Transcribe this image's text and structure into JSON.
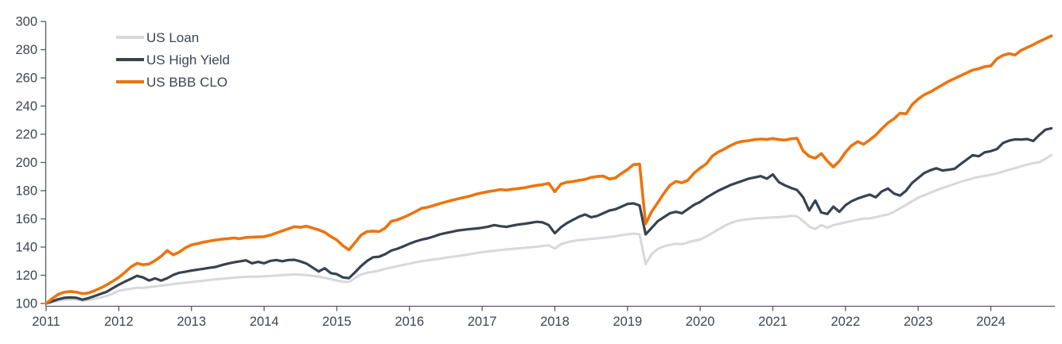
{
  "chart_data": {
    "type": "line",
    "title": "",
    "frequency": "monthly",
    "x_tick_labels": [
      "2011",
      "2012",
      "2013",
      "2014",
      "2015",
      "2016",
      "2017",
      "2018",
      "2019",
      "2020",
      "2021",
      "2022",
      "2023",
      "2024"
    ],
    "y_ticks": [
      100,
      120,
      140,
      160,
      180,
      200,
      220,
      240,
      260,
      280,
      300
    ],
    "ylim": [
      98,
      300
    ],
    "grid": "off",
    "legend_position": "top-left",
    "label_color": "#3E4552",
    "axis_color": "#565B64",
    "series": [
      {
        "name": "US Loan",
        "color": "#D7D8DC",
        "stroke_width": 3,
        "values": [
          100,
          100.8,
          101.8,
          102.6,
          103,
          102.8,
          101.8,
          102.4,
          103.3,
          104.3,
          105.3,
          106.8,
          109,
          109.8,
          110.5,
          111.2,
          111,
          111.6,
          112.1,
          112.7,
          113.2,
          113.8,
          114.3,
          114.8,
          115.2,
          115.7,
          116.2,
          116.7,
          117.1,
          117.5,
          117.9,
          118.3,
          118.6,
          118.9,
          119,
          119,
          119.2,
          119.5,
          119.8,
          120.1,
          120.4,
          120.6,
          120.4,
          120.1,
          119.6,
          119,
          118.2,
          117.2,
          116.3,
          115.5,
          115.2,
          118,
          120.5,
          121.8,
          122.5,
          123.3,
          124.6,
          125.5,
          126.5,
          127.4,
          128.3,
          129.2,
          130,
          130.7,
          131.2,
          131.8,
          132.5,
          133.1,
          133.7,
          134.3,
          135,
          135.8,
          136.4,
          136.9,
          137.4,
          137.9,
          138.3,
          138.7,
          139.1,
          139.5,
          139.9,
          140.3,
          140.8,
          141.3,
          138.9,
          142,
          143.4,
          144.3,
          144.9,
          145.3,
          145.8,
          146.2,
          146.7,
          147.1,
          147.7,
          148.5,
          149,
          149.6,
          149,
          128,
          135,
          138.7,
          140.5,
          141.5,
          142.4,
          142,
          143.4,
          144.5,
          145.3,
          147.5,
          150,
          152.5,
          155,
          157,
          158.5,
          159.3,
          159.8,
          160.3,
          160.5,
          160.8,
          161,
          161.2,
          161.5,
          162.1,
          161.8,
          158.4,
          154.6,
          152.8,
          155.6,
          153.7,
          155.6,
          156.5,
          157.5,
          158.4,
          159.3,
          160.2,
          160.3,
          161.2,
          162.2,
          163.1,
          165,
          167.5,
          170,
          172.5,
          175,
          176.8,
          178.5,
          180.2,
          181.8,
          183.3,
          184.8,
          186.2,
          187.5,
          188.7,
          189.8,
          190.5,
          191.2,
          192.3,
          193.5,
          194.8,
          196,
          197.3,
          198.5,
          199.5,
          200.2,
          202.5,
          205.3
        ]
      },
      {
        "name": "US High Yield",
        "color": "#39424E",
        "stroke_width": 3.2,
        "values": [
          100,
          101.5,
          103,
          104,
          104.3,
          104,
          102.7,
          103.8,
          105.3,
          106.8,
          108.3,
          110.8,
          113.3,
          115.5,
          117.5,
          119.6,
          118.5,
          116.3,
          117.8,
          116.2,
          118,
          120.3,
          121.8,
          122.5,
          123.3,
          124,
          124.6,
          125.3,
          125.9,
          127.2,
          128.3,
          129.2,
          129.9,
          130.6,
          128.5,
          129.5,
          128.5,
          130.2,
          130.8,
          130,
          130.8,
          131,
          129.8,
          128.3,
          125.5,
          122.7,
          125,
          121.5,
          120.8,
          118.5,
          118,
          122,
          126.5,
          130.2,
          132.8,
          133.2,
          135,
          137.5,
          138.8,
          140.5,
          142.4,
          144,
          145.3,
          146.2,
          147.5,
          149,
          150,
          150.8,
          151.8,
          152.3,
          152.8,
          153.2,
          153.7,
          154.5,
          155.6,
          154.8,
          154.3,
          155.2,
          156,
          156.5,
          157.2,
          157.9,
          157.5,
          155.6,
          149.8,
          154,
          157,
          159.3,
          161.5,
          163.1,
          161.2,
          162.1,
          164,
          165.9,
          166.8,
          168.7,
          170.6,
          171,
          169.5,
          149,
          153.7,
          158.4,
          161.2,
          164,
          165,
          164,
          167,
          170,
          172,
          175,
          177.5,
          180,
          182,
          184,
          185.5,
          187,
          188.5,
          189.4,
          190.3,
          188.5,
          191.5,
          186,
          183.8,
          182,
          180.5,
          175.3,
          166,
          173,
          164.5,
          163.5,
          168.7,
          165,
          169.7,
          172.5,
          174.4,
          175.9,
          177.2,
          175.3,
          179.5,
          181.5,
          178,
          176.5,
          180,
          185.5,
          189,
          192.5,
          194.5,
          195.9,
          194.3,
          194.8,
          195.5,
          198.8,
          202,
          205.2,
          204.4,
          207.2,
          208,
          209.5,
          213.8,
          215.5,
          216.4,
          216.2,
          216.6,
          215.2,
          219.5,
          223.2,
          224.2
        ]
      },
      {
        "name": "US BBB CLO",
        "color": "#EC740E",
        "stroke_width": 3.6,
        "values": [
          100,
          103.5,
          106.5,
          108,
          108.5,
          108,
          107,
          107.5,
          109,
          111,
          113.2,
          115.8,
          118.5,
          122,
          126,
          128.5,
          127.5,
          128,
          130.5,
          133.5,
          137.5,
          134.5,
          136.5,
          139.5,
          141.5,
          142.5,
          143.5,
          144.3,
          145,
          145.6,
          146,
          146.5,
          146,
          146.8,
          147,
          147.2,
          147.4,
          148.5,
          150,
          151.5,
          153,
          154.5,
          154,
          154.8,
          153.5,
          152.2,
          150.5,
          147.5,
          145,
          141,
          138,
          143,
          148.5,
          151,
          151.3,
          151,
          153.5,
          158.3,
          159.3,
          161,
          163,
          165.2,
          167.5,
          168.2,
          169.5,
          170.8,
          172,
          173.2,
          174.2,
          175.2,
          176.2,
          177.5,
          178.5,
          179.3,
          180,
          180.8,
          180.4,
          181,
          181.5,
          182.1,
          183,
          183.8,
          184.3,
          185.3,
          179.2,
          184.7,
          186,
          186.5,
          187.3,
          188,
          189.4,
          190.1,
          190.3,
          188.3,
          189,
          192.2,
          195,
          198.5,
          198.8,
          156.5,
          165.3,
          171.5,
          178.1,
          183.8,
          186.6,
          185.6,
          187.5,
          192.5,
          196,
          199,
          204.5,
          207.5,
          209.5,
          212,
          214,
          215,
          215.5,
          216.2,
          216.6,
          216.3,
          217,
          216.2,
          215.9,
          216.8,
          217.2,
          208.2,
          204.4,
          203,
          206.3,
          201,
          196.8,
          201,
          207.2,
          212,
          214.8,
          212.9,
          216,
          219.4,
          224,
          228,
          231,
          235,
          234.5,
          241,
          245,
          248,
          250,
          252.5,
          255,
          257.5,
          259.5,
          261.5,
          263.5,
          265.5,
          266.5,
          268,
          268.5,
          273.5,
          276,
          277.2,
          276.2,
          279.5,
          281.5,
          283.5,
          285.8,
          287.8,
          289.8
        ]
      }
    ]
  }
}
